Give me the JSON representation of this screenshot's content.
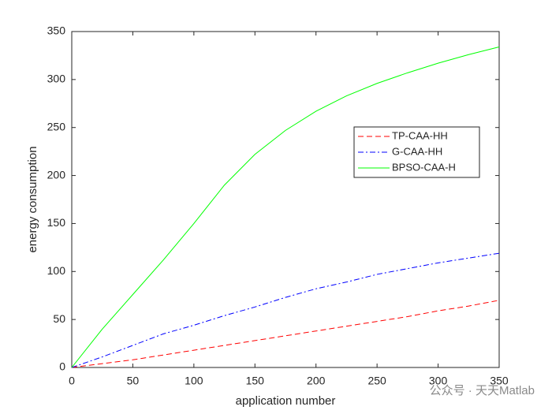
{
  "chart_data": {
    "type": "line",
    "xlabel": "application number",
    "ylabel": "energy consumption",
    "x": [
      0,
      25,
      50,
      75,
      100,
      125,
      150,
      175,
      200,
      225,
      250,
      275,
      300,
      325,
      350
    ],
    "series": [
      {
        "name": "TP-CAA-HH",
        "color": "#ff0000",
        "linestyle": "dashed",
        "values": [
          0,
          4,
          8,
          13,
          18,
          23,
          28,
          33,
          38,
          43,
          48,
          53,
          59,
          64,
          70
        ]
      },
      {
        "name": "G-CAA-HH",
        "color": "#0000ff",
        "linestyle": "dashdot",
        "values": [
          0,
          11,
          23,
          35,
          44,
          54,
          63,
          73,
          82,
          89,
          97,
          103,
          109,
          114,
          119
        ]
      },
      {
        "name": "BPSO-CAA-H",
        "color": "#00ff00",
        "linestyle": "solid",
        "values": [
          0,
          40,
          76,
          112,
          150,
          190,
          222,
          247,
          267,
          283,
          296,
          307,
          317,
          326,
          334
        ]
      }
    ],
    "xlim": [
      0,
      350
    ],
    "ylim": [
      0,
      350
    ],
    "xticks": [
      0,
      50,
      100,
      150,
      200,
      250,
      300,
      350
    ],
    "yticks": [
      0,
      50,
      100,
      150,
      200,
      250,
      300,
      350
    ],
    "grid": false,
    "legend": "east",
    "watermark": "公众号 · 天天Matlab"
  }
}
